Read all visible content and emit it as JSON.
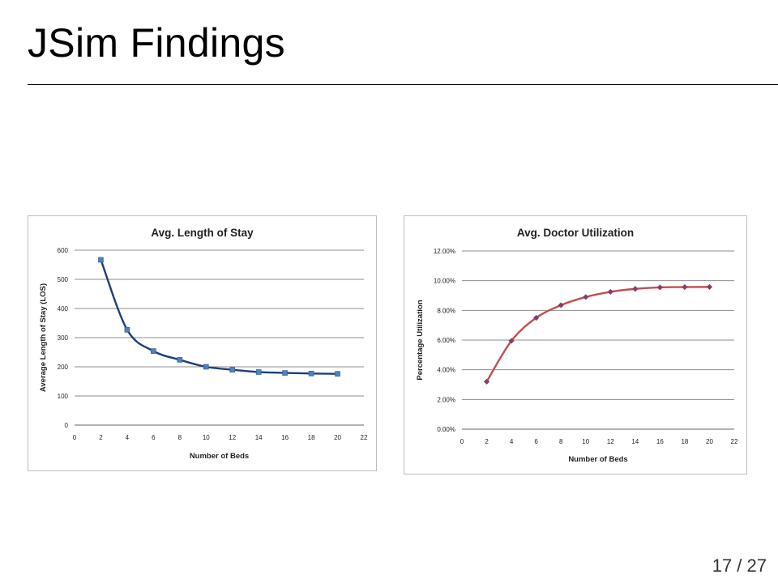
{
  "slide": {
    "title": "JSim Findings",
    "page_number": "17 / 27"
  },
  "chart_data": [
    {
      "type": "line",
      "title": "Avg. Length of Stay",
      "xlabel": "Number of Beds",
      "ylabel": "Average Length of Stay (LOS)",
      "xlim": [
        0,
        22
      ],
      "ylim": [
        0,
        600
      ],
      "xticks": [
        0,
        2,
        4,
        6,
        8,
        10,
        12,
        14,
        16,
        18,
        20,
        22
      ],
      "yticks": [
        0,
        100,
        200,
        300,
        400,
        500,
        600
      ],
      "ytick_format": "int",
      "grid": "horizontal",
      "marker": "square",
      "line_color": "#1f3f7a",
      "marker_color": "#4f81bd",
      "x": [
        2,
        4,
        6,
        8,
        10,
        12,
        14,
        16,
        18,
        20
      ],
      "series": [
        {
          "values": [
            567,
            327,
            254,
            224,
            200,
            190,
            182,
            179,
            177,
            176
          ]
        }
      ]
    },
    {
      "type": "line",
      "title": "Avg. Doctor Utilization",
      "xlabel": "Number of Beds",
      "ylabel": "Percentage Utilization",
      "xlim": [
        0,
        22
      ],
      "ylim": [
        0,
        12
      ],
      "xticks": [
        0,
        2,
        4,
        6,
        8,
        10,
        12,
        14,
        16,
        18,
        20,
        22
      ],
      "yticks": [
        0,
        2,
        4,
        6,
        8,
        10,
        12
      ],
      "ytick_format": "percent2",
      "grid": "horizontal",
      "marker": "diamond",
      "line_color": "#c0504d",
      "marker_color": "#8b3a6b",
      "x": [
        2,
        4,
        6,
        8,
        10,
        12,
        14,
        16,
        18,
        20
      ],
      "series": [
        {
          "values": [
            3.2,
            5.95,
            7.5,
            8.35,
            8.9,
            9.25,
            9.45,
            9.55,
            9.57,
            9.58
          ]
        }
      ]
    }
  ]
}
